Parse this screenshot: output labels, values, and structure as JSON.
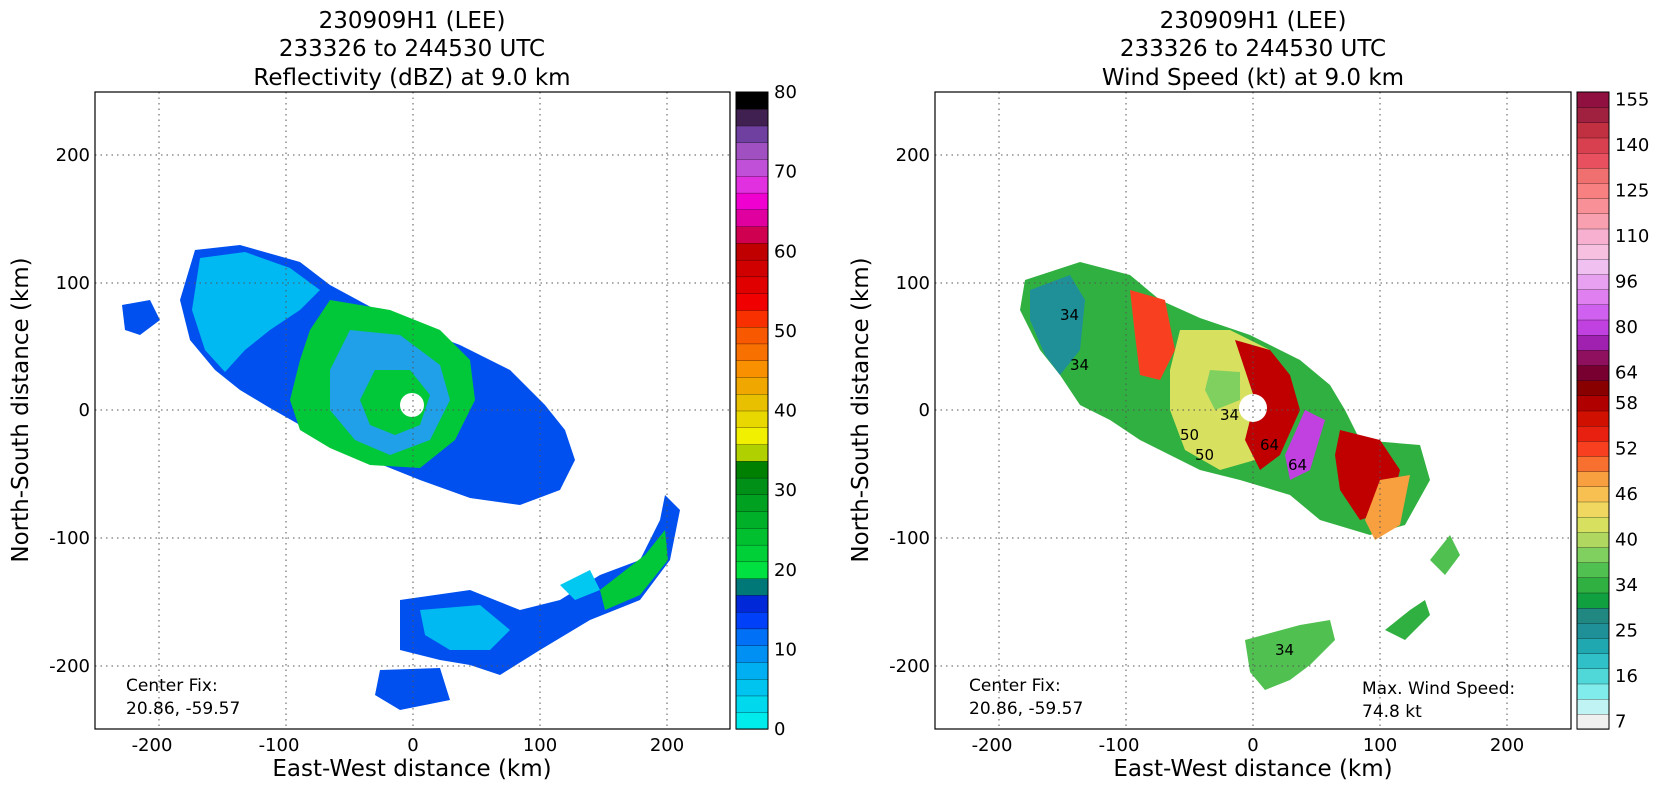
{
  "chart_data": [
    {
      "type": "heatmap",
      "title": "230909H1 (LEE)",
      "subtitle": "233326 to 244530 UTC",
      "product": "Reflectivity (dBZ) at 9.0 km",
      "xlabel": "East-West distance (km)",
      "ylabel": "North-South distance (km)",
      "xlim": [
        -250,
        250
      ],
      "ylim": [
        -250,
        250
      ],
      "xticks": [
        -200,
        -100,
        0,
        100,
        200
      ],
      "yticks": [
        -200,
        -100,
        0,
        100,
        200
      ],
      "grid": true,
      "center_fix_label": "Center Fix:",
      "center_fix_value": "20.86, -59.57",
      "colorbar": {
        "min": 0,
        "max": 80,
        "step": 2.5,
        "tick_values": [
          0,
          10,
          20,
          30,
          40,
          50,
          60,
          70,
          80
        ],
        "colors": [
          "#00ecec",
          "#00d8ee",
          "#00c4f0",
          "#00aff2",
          "#0090f4",
          "#0070f6",
          "#0040f8",
          "#0028d8",
          "#007878",
          "#00e040",
          "#00d038",
          "#00c030",
          "#00b028",
          "#00a020",
          "#009018",
          "#008000",
          "#b0d000",
          "#f0f000",
          "#e8d800",
          "#e8c000",
          "#f0a800",
          "#f89000",
          "#f87000",
          "#f85800",
          "#f83000",
          "#f00000",
          "#e00000",
          "#d00000",
          "#c00000",
          "#d00050",
          "#e000a0",
          "#f000d0",
          "#e030e0",
          "#c050d8",
          "#a050c0",
          "#7040a0",
          "#402050",
          "#000000"
        ]
      }
    },
    {
      "type": "heatmap",
      "title": "230909H1 (LEE)",
      "subtitle": "233326 to 244530 UTC",
      "product": "Wind Speed (kt) at 9.0 km",
      "xlabel": "East-West distance (km)",
      "ylabel": "North-South distance (km)",
      "xlim": [
        -250,
        250
      ],
      "ylim": [
        -250,
        250
      ],
      "xticks": [
        -200,
        -100,
        0,
        100,
        200
      ],
      "yticks": [
        -200,
        -100,
        0,
        100,
        200
      ],
      "grid": true,
      "center_fix_label": "Center Fix:",
      "center_fix_value": "20.86, -59.57",
      "max_wind_label": "Max. Wind Speed:",
      "max_wind_value": "74.8 kt",
      "colorbar": {
        "tick_labels": [
          "7",
          "16",
          "25",
          "34",
          "40",
          "46",
          "52",
          "58",
          "64",
          "80",
          "96",
          "110",
          "125",
          "140",
          "155"
        ],
        "colors": [
          "#f0f0f0",
          "#c0f4f4",
          "#80ecec",
          "#50d8d8",
          "#30c0c8",
          "#20a8b0",
          "#209098",
          "#208880",
          "#10a040",
          "#30b040",
          "#50c050",
          "#80d060",
          "#b0d860",
          "#d8e060",
          "#f0d860",
          "#f8c050",
          "#f8a040",
          "#f87030",
          "#f84020",
          "#e82010",
          "#d01000",
          "#b00000",
          "#880000",
          "#780030",
          "#901060",
          "#a020b0",
          "#c040e0",
          "#d060f0",
          "#e080f0",
          "#e8a0f0",
          "#f0c0f0",
          "#f8c0e0",
          "#f8b0d0",
          "#f8a0b0",
          "#f89098",
          "#f88080",
          "#f07070",
          "#e85060",
          "#d84050",
          "#c03040",
          "#a02040",
          "#901040"
        ]
      },
      "contour_labels": [
        "34",
        "34",
        "34",
        "50",
        "50",
        "64",
        "64",
        "34"
      ]
    }
  ]
}
